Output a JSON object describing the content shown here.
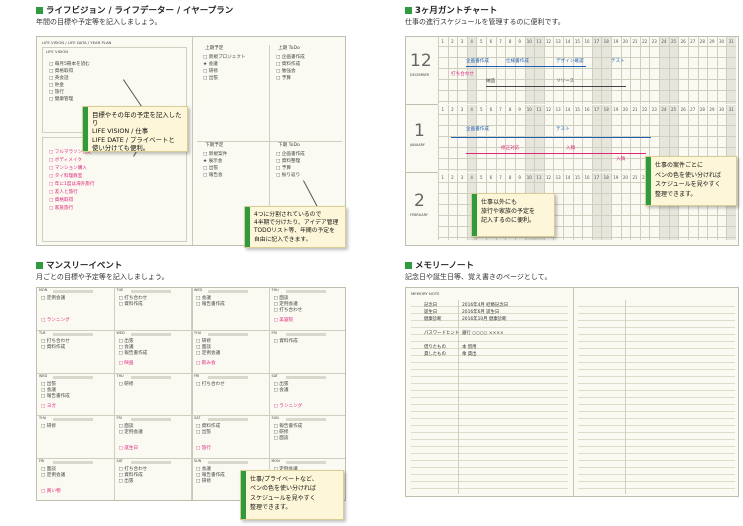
{
  "panels": {
    "life": {
      "title": "ライフビジョン / ライフデーター / イヤープラン",
      "desc": "年間の目標や予定等を記入しましょう。",
      "page_header": "LIFE VISION / LIFE DATA / YEAR PLAN",
      "left_box_label": "LIFE VISION",
      "left_items": [
        "□ 毎月5冊本を読む",
        "□ 資格取得",
        "□ 英会話",
        "□ 貯金",
        "□ 旅行",
        "□ 健康管理"
      ],
      "left_pink_items": [
        "□ フルマラソン完走",
        "□ ボディメイク",
        "□ マンション購入",
        "□ タイ料理教室",
        "□ 年に1度は海外旅行",
        "□ 友人と旅行",
        "□ 資格取得",
        "□ 家族旅行"
      ],
      "quad_labels": [
        "上期予定",
        "上期 ToDo",
        "下期予定",
        "下期 ToDo"
      ],
      "quad_items": [
        [
          "□ 新規プロジェクト",
          "★ 会議",
          "□ 研修",
          "□ 出張"
        ],
        [
          "□ 企画書作成",
          "□ 資料作成",
          "□ 勉強会",
          "□ 予算"
        ],
        [
          "□ 新規案件",
          "★ 展示会",
          "□ 出張",
          "□ 報告会"
        ],
        [
          "□ 企画書作成",
          "□ 資料整理",
          "□ 予算",
          "□ 振り返り"
        ]
      ],
      "callout1": "目標やその年の予定を記入したり\nLIFE VISION / 仕事\nLIFE DATE / プライベートと\n使い分けても便利。",
      "callout2": "4つに分割されているので\n4半期で分けたり、アイデア管理\nTODOリスト等、年間の予定を\n自由に記入できます。"
    },
    "gantt": {
      "title": "3ヶ月ガントチャート",
      "desc": "仕事の進行スケジュールを管理するのに便利です。",
      "months": [
        "12",
        "1",
        "2"
      ],
      "month_labels": [
        "DECEMBER",
        "JANUARY",
        "FEBRUARY"
      ],
      "day_numbers": [
        "1",
        "2",
        "3",
        "4",
        "5",
        "6",
        "7",
        "8",
        "9",
        "10",
        "11",
        "12",
        "13",
        "14",
        "15",
        "16",
        "17",
        "18",
        "19",
        "20",
        "21",
        "22",
        "23",
        "24",
        "25",
        "26",
        "27",
        "28",
        "29",
        "30",
        "31"
      ],
      "tasks_blue": [
        "企画書作成",
        "仕様書作成",
        "デザイン確認",
        "テスト",
        "納品",
        "リリース"
      ],
      "tasks_red": [
        "打ち合わせ",
        "修正対応",
        "入稿",
        "入稿",
        "入稿"
      ],
      "callout1": "仕事以外にも\n旅行や家族の予定を\n記入するのに便利。",
      "callout2": "仕事の案件ごとに\nペンの色を使い分ければ\nスケジュールを見やすく\n整理できます。"
    },
    "monthly": {
      "title": "マンスリーイベント",
      "desc": "月ごとの目標や予定等を記入しましょう。",
      "weekdays": [
        "MON",
        "TUE",
        "WED",
        "THU",
        "FRI",
        "SAT",
        "SUN",
        "MON"
      ],
      "black_items": [
        "□ 定例会議",
        "□ 打ち合わせ",
        "□ 資料作成",
        "□ 出張",
        "□ 会議",
        "□ 報告書作成",
        "□ 研修",
        "□ 面談"
      ],
      "pink_items": [
        "□ ランニング",
        "□ ヨガ",
        "□ 買い物",
        "□ 映画",
        "□ 誕生日",
        "□ 飲み会",
        "□ 旅行",
        "□ 美容院"
      ],
      "callout": "仕事/プライベートなど、\nペンの色を使い分ければ\nスケジュールを見やすく\n整理できます。"
    },
    "memory": {
      "title": "メモリーノート",
      "desc": "記念日や誕生日等、覚え書きのページとして。",
      "page_header": "MEMORY NOTE",
      "rows": [
        {
          "label": "記念日",
          "value": "2016年4月 結婚記念日"
        },
        {
          "label": "誕生日",
          "value": "2016年6月 誕生日"
        },
        {
          "label": "健康診断",
          "value": "2016年10月 健康診断"
        },
        {
          "label": "パスワードヒント",
          "value": "銀行 ○○○○ ××××"
        },
        {
          "label": "借りたもの",
          "value": "本 借用"
        },
        {
          "label": "貸したもの",
          "value": "傘 貸出"
        }
      ]
    }
  }
}
